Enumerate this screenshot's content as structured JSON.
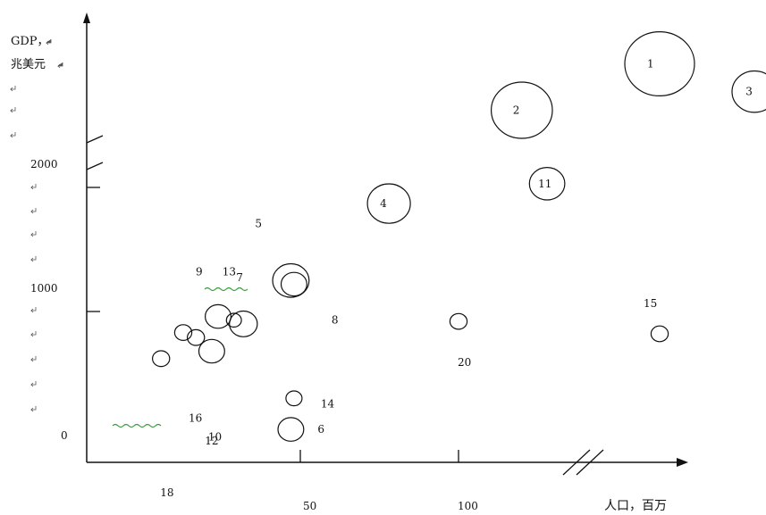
{
  "chart_data": {
    "type": "scatter",
    "title": "",
    "ylabel_lines": [
      "GDP，",
      "兆美元"
    ],
    "xlabel": "人口，百万",
    "y_ticks": [
      {
        "label": "0",
        "value": 0
      },
      {
        "label": "1000",
        "value": 1000
      },
      {
        "label": "2000",
        "value": 2000
      }
    ],
    "x_ticks": [
      {
        "label": "50",
        "value": 50
      },
      {
        "label": "100",
        "value": 100
      }
    ],
    "axis_breaks": [
      "x",
      "y"
    ],
    "grid": false,
    "points": [
      {
        "label": "1",
        "x": 150,
        "y": 3050,
        "size": 65
      },
      {
        "label": "2",
        "x": 120,
        "y": 2650,
        "size": 57
      },
      {
        "label": "3",
        "x": 168,
        "y": 2810,
        "size": 42
      },
      {
        "label": "4",
        "x": 78,
        "y": 1870,
        "size": 40
      },
      {
        "label": "5",
        "x": 47,
        "y": 1250,
        "size": 34
      },
      {
        "label": "6",
        "x": 47,
        "y": 50,
        "size": 24
      },
      {
        "label": "7",
        "x": 32,
        "y": 900,
        "size": 26
      },
      {
        "label": "8",
        "x": 48,
        "y": 1220,
        "size": 24
      },
      {
        "label": "9",
        "x": 24,
        "y": 960,
        "size": 24
      },
      {
        "label": "10",
        "x": 22,
        "y": 680,
        "size": 24
      },
      {
        "label": "11",
        "x": 128,
        "y": 2030,
        "size": 33
      },
      {
        "label": "12",
        "x": 17,
        "y": 790,
        "size": 16
      },
      {
        "label": "13",
        "x": 29,
        "y": 930,
        "size": 14
      },
      {
        "label": "14",
        "x": 48,
        "y": 300,
        "size": 15
      },
      {
        "label": "15",
        "x": 150,
        "y": 820,
        "size": 16
      },
      {
        "label": "16",
        "x": 13,
        "y": 830,
        "size": 16
      },
      {
        "label": "18",
        "x": 6,
        "y": 620,
        "size": 16
      },
      {
        "label": "20",
        "x": 100,
        "y": 920,
        "size": 16
      }
    ]
  }
}
